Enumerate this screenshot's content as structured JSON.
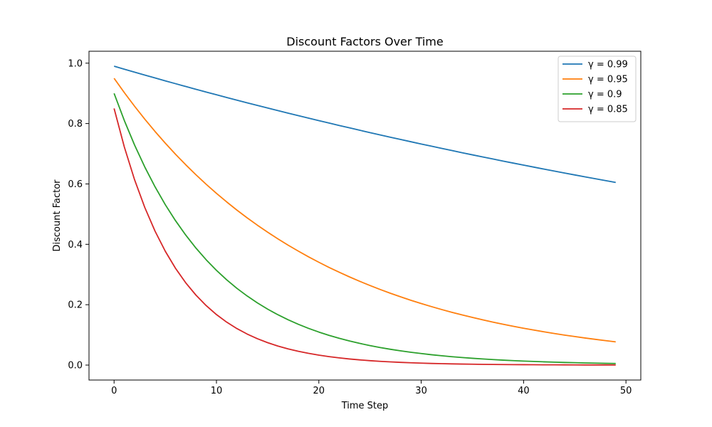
{
  "chart_data": {
    "type": "line",
    "title": "Discount Factors Over Time",
    "xlabel": "Time Step",
    "ylabel": "Discount Factor",
    "xlim": [
      -2.45,
      51.45
    ],
    "ylim": [
      -0.0495,
      1.0395
    ],
    "x_ticks": [
      0,
      10,
      20,
      30,
      40,
      50
    ],
    "y_ticks": [
      0.0,
      0.2,
      0.4,
      0.6,
      0.8,
      1.0
    ],
    "x_tick_labels": [
      "0",
      "10",
      "20",
      "30",
      "40",
      "50"
    ],
    "y_tick_labels": [
      "0.0",
      "0.2",
      "0.4",
      "0.6",
      "0.8",
      "1.0"
    ],
    "x": [
      0,
      1,
      2,
      3,
      4,
      5,
      6,
      7,
      8,
      9,
      10,
      11,
      12,
      13,
      14,
      15,
      16,
      17,
      18,
      19,
      20,
      21,
      22,
      23,
      24,
      25,
      26,
      27,
      28,
      29,
      30,
      31,
      32,
      33,
      34,
      35,
      36,
      37,
      38,
      39,
      40,
      41,
      42,
      43,
      44,
      45,
      46,
      47,
      48,
      49
    ],
    "series": [
      {
        "name": "γ = 0.99",
        "color": "#1f77b4",
        "values": [
          0.99,
          0.9801,
          0.9703,
          0.9606,
          0.951,
          0.9415,
          0.9321,
          0.9227,
          0.9135,
          0.9044,
          0.8953,
          0.8864,
          0.8775,
          0.8687,
          0.86,
          0.8515,
          0.8429,
          0.8345,
          0.8262,
          0.8179,
          0.8097,
          0.8016,
          0.7936,
          0.7857,
          0.7778,
          0.77,
          0.7623,
          0.7547,
          0.7472,
          0.7397,
          0.7323,
          0.725,
          0.7177,
          0.7106,
          0.7034,
          0.6964,
          0.6894,
          0.6826,
          0.6757,
          0.669,
          0.6623,
          0.6557,
          0.6491,
          0.6426,
          0.6362,
          0.6298,
          0.6235,
          0.6173,
          0.6111,
          0.605
        ]
      },
      {
        "name": "γ = 0.95",
        "color": "#ff7f0e",
        "values": [
          0.95,
          0.9025,
          0.8574,
          0.8145,
          0.7738,
          0.7351,
          0.6983,
          0.6634,
          0.6302,
          0.5987,
          0.5688,
          0.5404,
          0.5133,
          0.4877,
          0.4633,
          0.4401,
          0.4181,
          0.3972,
          0.3774,
          0.3585,
          0.3406,
          0.3235,
          0.3074,
          0.292,
          0.2774,
          0.2635,
          0.2503,
          0.2378,
          0.2259,
          0.2146,
          0.2039,
          0.1937,
          0.184,
          0.1748,
          0.1661,
          0.1578,
          0.1499,
          0.1424,
          0.1353,
          0.1285,
          0.1221,
          0.116,
          0.1102,
          0.1047,
          0.0994,
          0.0945,
          0.0897,
          0.0853,
          0.081,
          0.0769
        ]
      },
      {
        "name": "γ = 0.9",
        "color": "#2ca02c",
        "values": [
          0.9,
          0.81,
          0.729,
          0.6561,
          0.5905,
          0.5314,
          0.4783,
          0.4305,
          0.3874,
          0.3487,
          0.3138,
          0.2824,
          0.2542,
          0.2288,
          0.2059,
          0.1853,
          0.1668,
          0.1501,
          0.1351,
          0.1216,
          0.1094,
          0.0985,
          0.0886,
          0.0798,
          0.0718,
          0.0646,
          0.0581,
          0.0523,
          0.0471,
          0.0424,
          0.0382,
          0.0343,
          0.0309,
          0.0278,
          0.025,
          0.0225,
          0.0203,
          0.0182,
          0.0164,
          0.0148,
          0.0133,
          0.012,
          0.0108,
          0.0097,
          0.0087,
          0.0079,
          0.0071,
          0.0064,
          0.0057,
          0.0052
        ]
      },
      {
        "name": "γ = 0.85",
        "color": "#d62728",
        "values": [
          0.85,
          0.7225,
          0.6141,
          0.522,
          0.4437,
          0.3771,
          0.3206,
          0.2725,
          0.2316,
          0.1969,
          0.1673,
          0.1422,
          0.1209,
          0.1028,
          0.0874,
          0.0743,
          0.0631,
          0.0536,
          0.0456,
          0.0388,
          0.0329,
          0.028,
          0.0238,
          0.0202,
          0.0172,
          0.0146,
          0.0124,
          0.0106,
          0.009,
          0.0076,
          0.0065,
          0.0055,
          0.0047,
          0.004,
          0.0034,
          0.0029,
          0.0024,
          0.0021,
          0.0018,
          0.0015,
          0.0013,
          0.0011,
          0.0009,
          0.0008,
          0.0007,
          0.0006,
          0.0005,
          0.0004,
          0.0004,
          0.0003
        ]
      }
    ],
    "grid": false,
    "legend_position": "top-right"
  }
}
